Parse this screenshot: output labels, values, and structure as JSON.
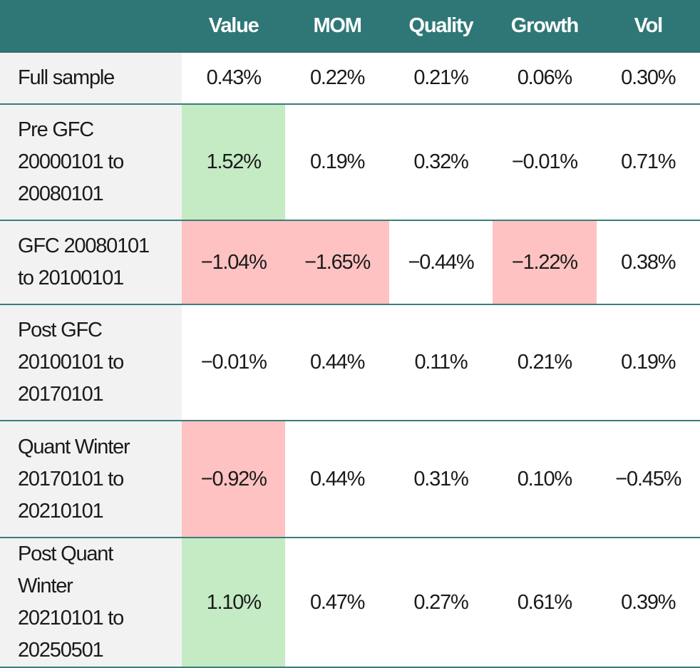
{
  "table": {
    "header": [
      "Value",
      "MOM",
      "Quality",
      "Growth",
      "Vol"
    ],
    "rows": [
      [
        "Full sample",
        "0.43%",
        "0.22%",
        "0.21%",
        "0.06%",
        "0.30%"
      ],
      [
        "Pre GFC 20000101 to 20080101",
        "1.52%",
        "0.19%",
        "0.32%",
        "−0.01%",
        "0.71%"
      ],
      [
        "GFC 20080101 to 20100101",
        "−1.04%",
        "−1.65%",
        "−0.44%",
        "−1.22%",
        "0.38%"
      ],
      [
        "Post GFC 20100101 to 20170101",
        "−0.01%",
        "0.44%",
        "0.11%",
        "0.21%",
        "0.19%"
      ],
      [
        "Quant Winter 20170101 to 20210101",
        "−0.92%",
        "0.44%",
        "0.31%",
        "0.10%",
        "−0.45%"
      ],
      [
        "Post Quant Winter 20210101 to 20250501",
        "1.10%",
        "0.47%",
        "0.27%",
        "0.61%",
        "0.39%"
      ]
    ]
  }
}
